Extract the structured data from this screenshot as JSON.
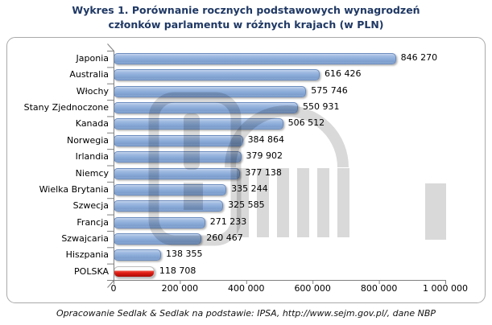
{
  "title": {
    "line1": "Wykres 1. Porównanie rocznych podstawowych wynagrodzeń",
    "line2": "członków parlamentu w różnych krajach (w PLN)"
  },
  "footer": {
    "source": "Opracowanie Sedlak & Sedlak na podstawie: IPSA, http://www.sejm.gov.pl/,  dane NBP"
  },
  "chart_data": {
    "type": "bar",
    "orientation": "horizontal",
    "title": "Wykres 1. Porównanie rocznych podstawowych wynagrodzeń członków parlamentu w różnych krajach (w PLN)",
    "categories": [
      "Japonia",
      "Australia",
      "Włochy",
      "Stany Zjednoczone",
      "Kanada",
      "Norwegia",
      "Irlandia",
      "Niemcy",
      "Wielka Brytania",
      "Szwecja",
      "Francja",
      "Szwajcaria",
      "Hiszpania",
      "POLSKA"
    ],
    "values": [
      846270,
      616426,
      575746,
      550931,
      506512,
      384864,
      379902,
      377138,
      335244,
      325585,
      271233,
      260467,
      138355,
      118708
    ],
    "value_labels": [
      "846 270",
      "616 426",
      "575 746",
      "550 931",
      "506 512",
      "384 864",
      "379 902",
      "377 138",
      "335 244",
      "325 585",
      "271 233",
      "260 467",
      "138 355",
      "118 708"
    ],
    "highlight_category": "POLSKA",
    "xlim": [
      0,
      1000000
    ],
    "x_ticks": [
      0,
      200000,
      400000,
      600000,
      800000,
      1000000
    ],
    "x_tick_labels": [
      "0",
      "200 000",
      "400 000",
      "600 000",
      "800 000",
      "1 000 000"
    ],
    "grid": false,
    "legend": false,
    "bar_color": "#8AABD8",
    "bar_border_color": "#6B8CBE",
    "highlight_color": "#DD1B14",
    "watermark": "sejm-building-emblem"
  },
  "colors": {
    "title_text": "#1F3864",
    "label_text": "#000000",
    "frame_border": "#A9A9A9",
    "axis": "#808080",
    "watermark_gray": "rgba(0,0,0,0.15)"
  }
}
